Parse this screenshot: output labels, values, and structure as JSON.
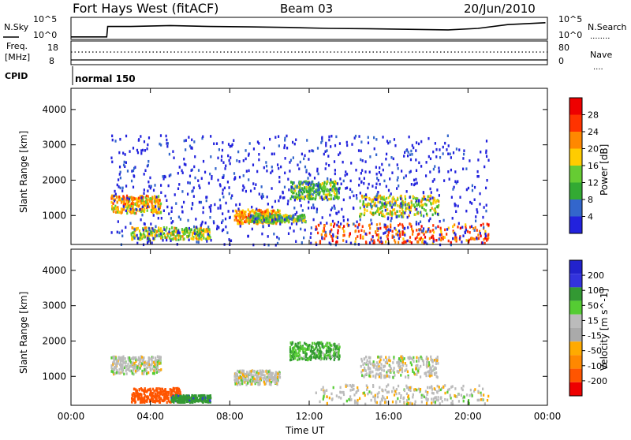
{
  "header": {
    "title": "Fort Hays West (fitACF)",
    "beam": "Beam 03",
    "date": "20/Jun/2010"
  },
  "noise_panel": {
    "left_label": "N.Sky",
    "right_label": "N.Search",
    "left_ticks": [
      "10^5",
      "10^0"
    ],
    "right_ticks": [
      "10^5",
      "10^0"
    ]
  },
  "freq_panel": {
    "left_label_line1": "Freq.",
    "left_label_line2": "[MHz]",
    "right_label": "Nave",
    "left_ticks": [
      "18",
      "8"
    ],
    "right_ticks": [
      "80",
      "0"
    ]
  },
  "cpid": {
    "label": "CPID",
    "value": "normal 150"
  },
  "x_axis": {
    "title": "Time UT",
    "ticks": [
      "00:00",
      "04:00",
      "08:00",
      "12:00",
      "16:00",
      "20:00",
      "00:00"
    ]
  },
  "colors": {
    "power_scale": [
      "#2222dd",
      "#3366cc",
      "#33aa33",
      "#66cc33",
      "#ffcc00",
      "#ff8800",
      "#ff3300",
      "#ee0000"
    ],
    "velocity_scale": [
      "#2222cc",
      "#3333dd",
      "#339933",
      "#55cc33",
      "#bbbbbb",
      "#aaaaaa",
      "#ffaa00",
      "#ff8800",
      "#ff5500",
      "#ee0000"
    ]
  },
  "chart_data": [
    {
      "type": "heatmap",
      "panel": "power",
      "ylabel": "Slant Range [km]",
      "yticks": [
        "1000",
        "2000",
        "3000",
        "4000"
      ],
      "ylim": [
        180,
        4600
      ],
      "xlim_hours": [
        0,
        24
      ],
      "colorbar_label": "Power [dB]",
      "colorbar_ticks": [
        "4",
        "8",
        "12",
        "16",
        "20",
        "24",
        "28"
      ],
      "colorbar_range": [
        0,
        32
      ],
      "echo_regions": [
        {
          "t0": 2.0,
          "t1": 4.5,
          "r0": 1100,
          "r1": 1600,
          "level": 5
        },
        {
          "t0": 3.0,
          "t1": 7.0,
          "r0": 350,
          "r1": 700,
          "level": 4
        },
        {
          "t0": 8.2,
          "t1": 10.5,
          "r0": 800,
          "r1": 1200,
          "level": 5
        },
        {
          "t0": 9.0,
          "t1": 11.8,
          "r0": 850,
          "r1": 1050,
          "level": 3
        },
        {
          "t0": 11.0,
          "t1": 13.5,
          "r0": 1500,
          "r1": 2000,
          "level": 3
        },
        {
          "t0": 12.3,
          "t1": 21.0,
          "r0": 250,
          "r1": 800,
          "level": 6
        },
        {
          "t0": 14.5,
          "t1": 18.5,
          "r0": 1000,
          "r1": 1600,
          "level": 4
        },
        {
          "t0": 2.0,
          "t1": 21.0,
          "r0": 200,
          "r1": 3300,
          "level": 1
        }
      ]
    },
    {
      "type": "heatmap",
      "panel": "velocity",
      "ylabel": "Slant Range [km]",
      "yticks": [
        "1000",
        "2000",
        "3000",
        "4000"
      ],
      "ylim": [
        180,
        4600
      ],
      "xlim_hours": [
        0,
        24
      ],
      "colorbar_label": "Velocity [m s^-1]",
      "colorbar_ticks": [
        "200",
        "100",
        "50",
        "15",
        "-15",
        "-50",
        "-100",
        "-200"
      ],
      "colorbar_range": [
        -250,
        250
      ],
      "echo_regions": [
        {
          "t0": 2.0,
          "t1": 4.5,
          "r0": 1100,
          "r1": 1600,
          "vel": 0
        },
        {
          "t0": 3.0,
          "t1": 5.5,
          "r0": 300,
          "r1": 700,
          "vel": -120
        },
        {
          "t0": 5.0,
          "t1": 7.0,
          "r0": 300,
          "r1": 500,
          "vel": 60
        },
        {
          "t0": 8.2,
          "t1": 10.5,
          "r0": 800,
          "r1": 1200,
          "vel": 0
        },
        {
          "t0": 11.0,
          "t1": 13.5,
          "r0": 1500,
          "r1": 2000,
          "vel": 30
        },
        {
          "t0": 12.3,
          "t1": 21.0,
          "r0": 250,
          "r1": 800,
          "vel": 0
        },
        {
          "t0": 14.5,
          "t1": 18.5,
          "r0": 1000,
          "r1": 1600,
          "vel": 0
        }
      ]
    }
  ],
  "noise_series": {
    "x_hours": [
      0,
      1.8,
      1.85,
      3,
      5,
      7,
      9,
      11,
      13,
      15,
      17,
      19,
      20.5,
      22,
      23.9
    ],
    "y_level": [
      0.05,
      0.05,
      0.6,
      0.6,
      0.65,
      0.6,
      0.58,
      0.55,
      0.5,
      0.48,
      0.45,
      0.42,
      0.5,
      0.7,
      0.8
    ]
  }
}
